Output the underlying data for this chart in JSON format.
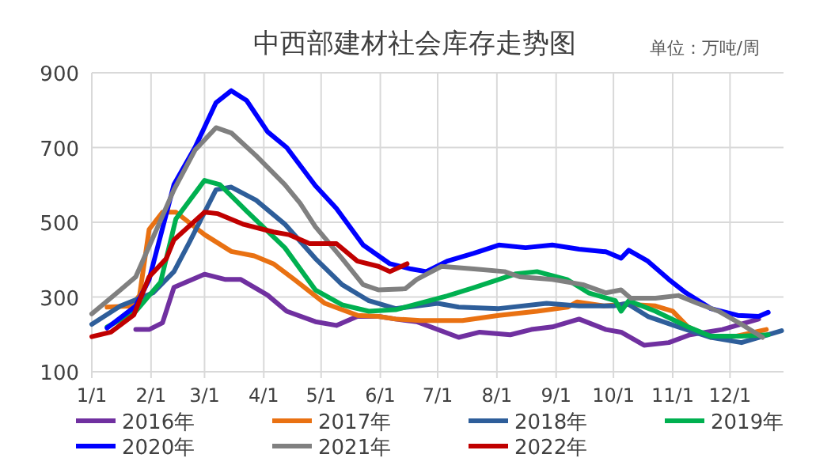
{
  "chart_data": {
    "type": "line",
    "title": "中西部建材社会库存走势图",
    "annotations": [
      "单位：万吨/周"
    ],
    "xlim": [
      "--01-01",
      "--12-29"
    ],
    "xticks": [
      {
        "value": "--01-01",
        "label": "1/1"
      },
      {
        "value": "--02-01",
        "label": "2/1"
      },
      {
        "value": "--03-01",
        "label": "3/1"
      },
      {
        "value": "--04-01",
        "label": "4/1"
      },
      {
        "value": "--05-01",
        "label": "5/1"
      },
      {
        "value": "--06-01",
        "label": "6/1"
      },
      {
        "value": "--07-01",
        "label": "7/1"
      },
      {
        "value": "--08-01",
        "label": "8/1"
      },
      {
        "value": "--09-01",
        "label": "9/1"
      },
      {
        "value": "--10-01",
        "label": "10/1"
      },
      {
        "value": "--11-01",
        "label": "11/1"
      },
      {
        "value": "--12-01",
        "label": "12/1"
      }
    ],
    "ylim": [
      100,
      900
    ],
    "yticks": [
      100,
      300,
      500,
      700,
      900
    ],
    "grid": true,
    "legend": "bottom",
    "marker": "none",
    "line_style": "solid",
    "series": [
      {
        "name": "2016年",
        "color": "#7030a0",
        "x": [
          "--01-24",
          "--01-31",
          "--02-07",
          "--02-13",
          "--03-01",
          "--03-12",
          "--03-20",
          "--04-03",
          "--04-13",
          "--04-28",
          "--05-09",
          "--05-20",
          "--05-31",
          "--06-09",
          "--06-20",
          "--07-12",
          "--07-23",
          "--08-08",
          "--08-19",
          "--08-30",
          "--09-13",
          "--09-27",
          "--10-05",
          "--10-17",
          "--10-30",
          "--11-10",
          "--11-27",
          "--12-16"
        ],
        "values": [
          213,
          213,
          231,
          326,
          361,
          347,
          347,
          305,
          262,
          234,
          224,
          248,
          248,
          241,
          234,
          192,
          206,
          199,
          213,
          220,
          241,
          213,
          206,
          171,
          178,
          199,
          213,
          241
        ]
      },
      {
        "name": "2017年",
        "color": "#e97112",
        "x": [
          "--01-09",
          "--01-22",
          "--01-26",
          "--01-31",
          "--02-07",
          "--02-14",
          "--03-01",
          "--03-15",
          "--03-27",
          "--04-06",
          "--04-17",
          "--05-03",
          "--05-20",
          "--05-31",
          "--06-09",
          "--06-22",
          "--07-14",
          "--08-02",
          "--08-22",
          "--09-07",
          "--09-12",
          "--09-26",
          "--10-07",
          "--10-23",
          "--11-01",
          "--11-09",
          "--11-21",
          "--12-04",
          "--12-20"
        ],
        "values": [
          273,
          276,
          305,
          481,
          527,
          527,
          467,
          422,
          410,
          389,
          347,
          283,
          251,
          248,
          241,
          237,
          237,
          251,
          262,
          273,
          287,
          276,
          281,
          276,
          262,
          220,
          192,
          195,
          213
        ]
      },
      {
        "name": "2018年",
        "color": "#2e5e9a",
        "x": [
          "--01-01",
          "--01-16",
          "--02-02",
          "--02-13",
          "--02-21",
          "--03-07",
          "--03-15",
          "--03-28",
          "--04-12",
          "--04-28",
          "--05-12",
          "--05-26",
          "--06-09",
          "--07-01",
          "--07-12",
          "--08-02",
          "--08-27",
          "--09-13",
          "--10-01",
          "--10-08",
          "--10-19",
          "--11-04",
          "--11-21",
          "--12-07",
          "--12-28"
        ],
        "values": [
          227,
          276,
          311,
          368,
          446,
          587,
          594,
          559,
          495,
          403,
          333,
          290,
          269,
          283,
          273,
          269,
          283,
          276,
          276,
          283,
          248,
          220,
          192,
          178,
          210
        ]
      },
      {
        "name": "2019年",
        "color": "#00b050",
        "x": [
          "--01-09",
          "--01-24",
          "--02-06",
          "--02-14",
          "--03-01",
          "--03-09",
          "--03-23",
          "--04-12",
          "--04-28",
          "--05-12",
          "--05-26",
          "--06-09",
          "--07-06",
          "--07-20",
          "--08-11",
          "--08-22",
          "--09-07",
          "--09-18",
          "--10-02",
          "--10-05",
          "--10-09",
          "--10-23",
          "--11-09",
          "--11-21",
          "--12-07",
          "--12-21"
        ],
        "values": [
          220,
          262,
          340,
          509,
          612,
          601,
          530,
          432,
          319,
          279,
          262,
          266,
          303,
          325,
          362,
          368,
          346,
          311,
          290,
          262,
          290,
          262,
          220,
          195,
          195,
          199
        ]
      },
      {
        "name": "2020年",
        "color": "#0000ff",
        "x": [
          "--01-09",
          "--01-24",
          "--01-31",
          "--02-13",
          "--02-24",
          "--03-07",
          "--03-15",
          "--03-23",
          "--04-03",
          "--04-13",
          "--04-28",
          "--05-09",
          "--05-23",
          "--06-06",
          "--06-17",
          "--06-25",
          "--07-06",
          "--07-20",
          "--08-02",
          "--08-16",
          "--08-30",
          "--09-13",
          "--09-27",
          "--10-05",
          "--10-09",
          "--10-19",
          "--10-30",
          "--11-08",
          "--11-21",
          "--12-05",
          "--12-16",
          "--12-21"
        ],
        "values": [
          217,
          276,
          347,
          601,
          700,
          820,
          852,
          826,
          742,
          700,
          598,
          537,
          439,
          389,
          375,
          368,
          396,
          417,
          439,
          432,
          439,
          428,
          421,
          404,
          425,
          396,
          347,
          311,
          269,
          251,
          248,
          259
        ]
      },
      {
        "name": "2021年",
        "color": "#808080",
        "x": [
          "--01-01",
          "--01-16",
          "--01-24",
          "--02-13",
          "--02-24",
          "--03-07",
          "--03-15",
          "--03-28",
          "--04-12",
          "--04-20",
          "--04-28",
          "--05-12",
          "--05-23",
          "--05-31",
          "--06-14",
          "--06-20",
          "--07-03",
          "--07-20",
          "--08-05",
          "--08-13",
          "--08-30",
          "--09-15",
          "--09-27",
          "--10-05",
          "--10-10",
          "--10-23",
          "--11-04",
          "--11-14",
          "--11-25",
          "--12-07",
          "--12-18"
        ],
        "values": [
          255,
          319,
          354,
          587,
          693,
          753,
          739,
          678,
          601,
          551,
          488,
          403,
          333,
          319,
          322,
          347,
          382,
          375,
          368,
          354,
          347,
          333,
          311,
          319,
          297,
          297,
          304,
          283,
          262,
          227,
          192
        ]
      },
      {
        "name": "2022年",
        "color": "#c00000",
        "x": [
          "--01-01",
          "--01-11",
          "--01-23",
          "--01-31",
          "--02-09",
          "--02-13",
          "--03-01",
          "--03-08",
          "--03-21",
          "--04-06",
          "--04-14",
          "--04-25",
          "--05-09",
          "--05-20",
          "--05-31",
          "--06-06",
          "--06-15"
        ],
        "values": [
          194,
          206,
          252,
          354,
          403,
          453,
          527,
          523,
          495,
          474,
          467,
          443,
          443,
          396,
          382,
          368,
          389
        ]
      }
    ]
  }
}
